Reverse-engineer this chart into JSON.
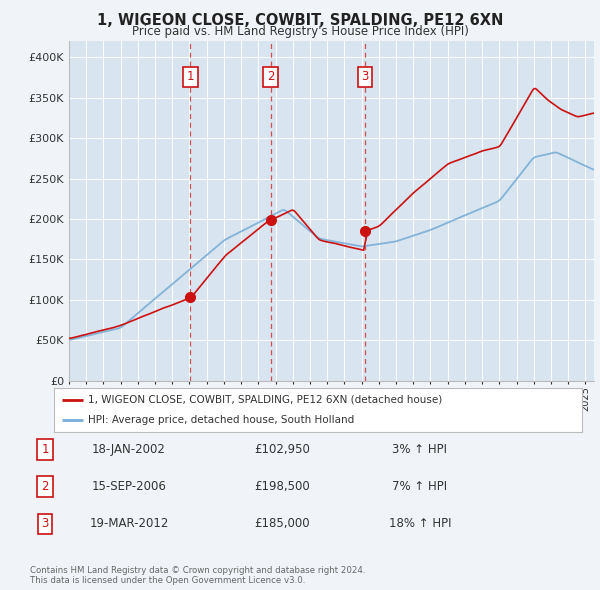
{
  "title": "1, WIGEON CLOSE, COWBIT, SPALDING, PE12 6XN",
  "subtitle": "Price paid vs. HM Land Registry's House Price Index (HPI)",
  "background_color": "#f0f4f8",
  "plot_bg_color": "#d8e4ef",
  "hpi_color": "#7aaed6",
  "price_color": "#cc1111",
  "vline_color": "#cc1111",
  "legend_box_color": "#ffffff",
  "legend_border_color": "#aaaaaa",
  "purchases": [
    {
      "date_num": 2002.05,
      "price": 102950,
      "label": "1"
    },
    {
      "date_num": 2006.71,
      "price": 198500,
      "label": "2"
    },
    {
      "date_num": 2012.21,
      "price": 185000,
      "label": "3"
    }
  ],
  "legend_entries": [
    "1, WIGEON CLOSE, COWBIT, SPALDING, PE12 6XN (detached house)",
    "HPI: Average price, detached house, South Holland"
  ],
  "table_rows": [
    {
      "num": "1",
      "date": "18-JAN-2002",
      "price": "£102,950",
      "hpi": "3% ↑ HPI"
    },
    {
      "num": "2",
      "date": "15-SEP-2006",
      "price": "£198,500",
      "hpi": "7% ↑ HPI"
    },
    {
      "num": "3",
      "date": "19-MAR-2012",
      "price": "£185,000",
      "hpi": "18% ↑ HPI"
    }
  ],
  "footer": "Contains HM Land Registry data © Crown copyright and database right 2024.\nThis data is licensed under the Open Government Licence v3.0.",
  "ylim": [
    0,
    420000
  ],
  "yticks": [
    0,
    50000,
    100000,
    150000,
    200000,
    250000,
    300000,
    350000,
    400000
  ],
  "xmin": 1995.0,
  "xmax": 2025.5
}
